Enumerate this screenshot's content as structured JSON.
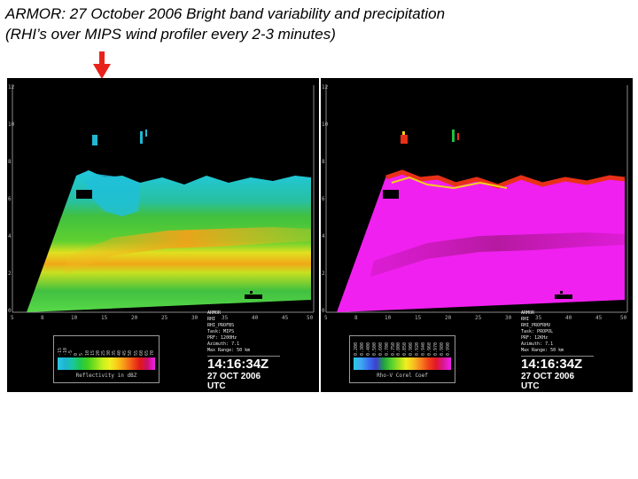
{
  "title": {
    "line1": "ARMOR:  27 October 2006 Bright band variability and precipitation",
    "line2": "(RHI’s over MIPS wind profiler every 2-3 minutes)"
  },
  "annotation": {
    "arrow_color": "#e8231c"
  },
  "panels": [
    {
      "id": "left",
      "product": "reflectivity",
      "x_ticks": [
        "5",
        "8",
        "10",
        "15",
        "20",
        "25",
        "30",
        "35",
        "40",
        "45",
        "50"
      ],
      "y_ticks": [
        "12",
        "10",
        "8",
        "6",
        "4",
        "2",
        "0"
      ],
      "colorbar": {
        "labels": [
          "-15",
          "-10",
          "-5",
          "0",
          "5",
          "10",
          "15",
          "20",
          "25",
          "30",
          "35",
          "40",
          "45",
          "50",
          "55",
          "60",
          "65",
          "70"
        ],
        "caption": "Reflectivity in dBZ",
        "colors": [
          "#28c8e8",
          "#1eb4d0",
          "#18c8a0",
          "#20c850",
          "#40d020",
          "#80e020",
          "#c8f020",
          "#f0f020",
          "#f8c818",
          "#f89018",
          "#f05018",
          "#e01818",
          "#c81070",
          "#f020f0"
        ]
      },
      "info": {
        "radar": "ARMOR",
        "scan": "RHI",
        "mode": "RHI_PROFBS",
        "task": "Task: MIPS",
        "prf": "PRF: 1200Hz",
        "azimuth": "Azimuth: 7.1",
        "range": "Max Range: 50 km",
        "time": "14:16:34Z",
        "date": "27 OCT 2006 UTC"
      }
    },
    {
      "id": "right",
      "product": "correlation",
      "x_ticks": [
        "5",
        "8",
        "10",
        "15",
        "20",
        "25",
        "30",
        "35",
        "40",
        "45",
        "50"
      ],
      "y_ticks": [
        "12",
        "10",
        "8",
        "6",
        "4",
        "2",
        "0"
      ],
      "colorbar": {
        "labels": [
          "0.200",
          "0.300",
          "0.400",
          "0.500",
          "0.600",
          "0.700",
          "0.750",
          "0.800",
          "0.850",
          "0.900",
          "0.920",
          "0.940",
          "0.960",
          "0.970",
          "0.980",
          "0.990"
        ],
        "caption": "Rho-V Corel Coef",
        "colors": [
          "#28c8e8",
          "#40a8f0",
          "#3870f0",
          "#4040d0",
          "#20a040",
          "#50d030",
          "#a0e020",
          "#f0f020",
          "#f8c020",
          "#f88020",
          "#f04018",
          "#e01828",
          "#d81898",
          "#f020f0"
        ]
      },
      "info": {
        "radar": "ARMOR",
        "scan": "RHI",
        "mode": "RHI_PROFRHV",
        "task": "Task: PROPOL",
        "prf": "PRF: 12KHz",
        "azimuth": "Azimuth: 7.1",
        "range": "Max Range: 50 km",
        "time": "14:16:34Z",
        "date": "27 OCT 2006 UTC"
      }
    }
  ]
}
